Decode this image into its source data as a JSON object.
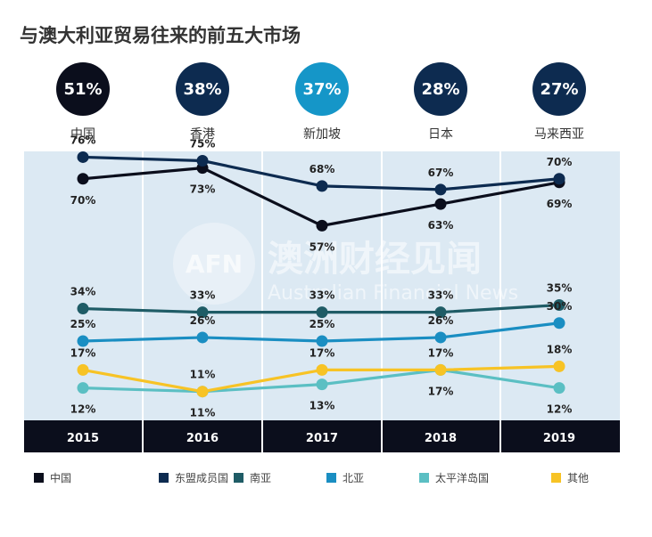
{
  "title": "与澳大利亚贸易往来的前五大市场",
  "top_markets": [
    {
      "rank_value": "51%",
      "name": "中国",
      "color": "#0b0e1c"
    },
    {
      "rank_value": "38%",
      "name": "香港",
      "color": "#0d2b50"
    },
    {
      "rank_value": "37%",
      "name": "新加坡",
      "color": "#1596c8"
    },
    {
      "rank_value": "28%",
      "name": "日本",
      "color": "#0d2b50"
    },
    {
      "rank_value": "27%",
      "name": "马来西亚",
      "color": "#0d2b50"
    }
  ],
  "watermark": {
    "logo": "AFN",
    "cn": "澳洲财经见闻",
    "en": "Australian Financial News"
  },
  "chart_data": {
    "type": "line",
    "title": "",
    "xlabel": "",
    "ylabel": "",
    "categories": [
      "2015",
      "2016",
      "2017",
      "2018",
      "2019"
    ],
    "ylim": [
      5,
      85
    ],
    "grid": false,
    "legend_position": "bottom",
    "series": [
      {
        "name": "中国",
        "color": "#0b0e1c",
        "values": [
          70,
          73,
          57,
          63,
          69
        ],
        "labels": [
          "70%",
          "73%",
          "57%",
          "63%",
          "69%"
        ],
        "label_pos": [
          "below",
          "below",
          "below",
          "below",
          "below"
        ]
      },
      {
        "name": "东盟成员国",
        "color": "#0d2b50",
        "values": [
          76,
          75,
          68,
          67,
          70
        ],
        "labels": [
          "76%",
          "75%",
          "68%",
          "67%",
          "70%"
        ],
        "label_pos": [
          "above",
          "above",
          "above",
          "above",
          "above"
        ]
      },
      {
        "name": "南亚",
        "color": "#1f5c66",
        "values": [
          34,
          33,
          33,
          33,
          35
        ],
        "labels": [
          "34%",
          "33%",
          "33%",
          "33%",
          "35%"
        ],
        "label_pos": [
          "above",
          "above",
          "above",
          "above",
          "above"
        ]
      },
      {
        "name": "北亚",
        "color": "#1a8ec2",
        "values": [
          25,
          26,
          25,
          26,
          30
        ],
        "labels": [
          "25%",
          "26%",
          "25%",
          "26%",
          "30%"
        ],
        "label_pos": [
          "above",
          "above",
          "above",
          "above",
          "above"
        ]
      },
      {
        "name": "太平洋岛国",
        "color": "#5bbfc3",
        "values": [
          12,
          11,
          13,
          17,
          12
        ],
        "labels": [
          "12%",
          "11%",
          "13%",
          "17%",
          "12%"
        ],
        "label_pos": [
          "below",
          "below",
          "below",
          "below",
          "below"
        ]
      },
      {
        "name": "其他",
        "color": "#f7c325",
        "values": [
          17,
          11,
          17,
          17,
          18
        ],
        "labels": [
          "17%",
          "11%",
          "17%",
          "17%",
          "18%"
        ],
        "label_pos": [
          "above",
          "above",
          "above",
          "above",
          "above"
        ]
      }
    ]
  }
}
